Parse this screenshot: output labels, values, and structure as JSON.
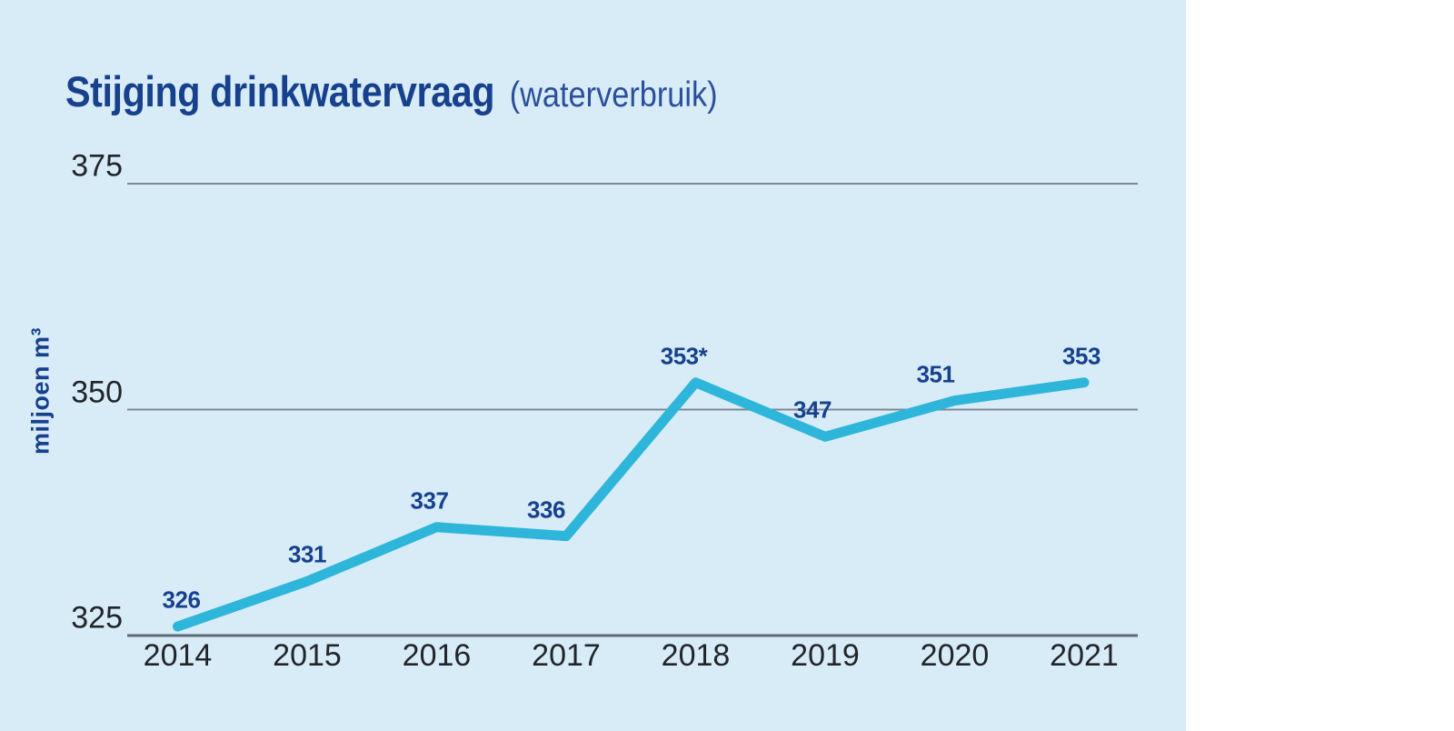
{
  "title": {
    "main": "Stijging drinkwatervraag",
    "suffix": "(waterverbruik)"
  },
  "colors": {
    "panel_background": "#d8ecf8",
    "line": "#2eb6da",
    "navy_text": "#17418c",
    "axis_text": "#212529",
    "gridline": "#7d8a94",
    "axis_line": "#5d6a73"
  },
  "chart_data": {
    "type": "line",
    "title": "Stijging drinkwatervraag (waterverbruik)",
    "categories": [
      "2014",
      "2015",
      "2016",
      "2017",
      "2018",
      "2019",
      "2020",
      "2021"
    ],
    "values": [
      326,
      331,
      337,
      336,
      353,
      347,
      351,
      353
    ],
    "point_labels": [
      "326",
      "331",
      "337",
      "336",
      "353*",
      "347",
      "351",
      "353"
    ],
    "xlabel": "",
    "ylabel": "miljoen m³",
    "yticks": [
      325,
      350,
      375
    ],
    "ylim": [
      325,
      375
    ],
    "grid": true,
    "legend": "none",
    "series_color": "#2eb6da",
    "point_label_color": "#17418c"
  }
}
